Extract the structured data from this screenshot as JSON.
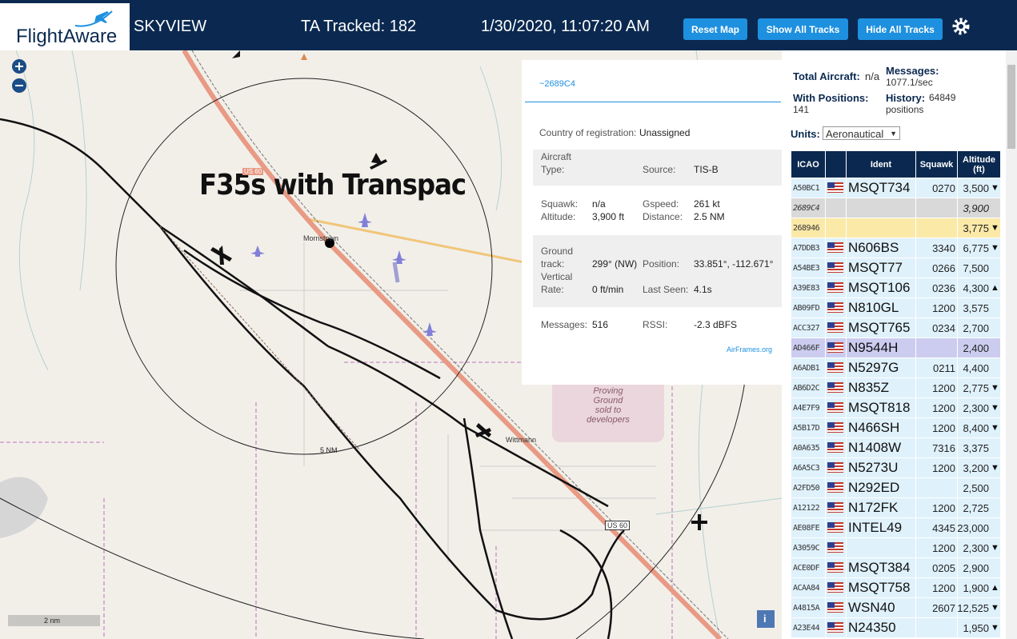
{
  "header": {
    "logo": "FlightAware",
    "app": "SKYVIEW",
    "tracked": "TA Tracked: 182",
    "datetime": "1/30/2020, 11:07:20 AM",
    "buttons": [
      "Reset Map",
      "Show All Tracks",
      "Hide All Tracks"
    ]
  },
  "map": {
    "annotation": "F35s with Transpac",
    "roads": [
      "US 60",
      "US 60"
    ],
    "places": [
      "Morristown",
      "Wittmann"
    ],
    "area": [
      "Proving",
      "Ground",
      "sold to",
      "developers"
    ],
    "ring": "5 NM",
    "scale": "2 nm",
    "info": "i"
  },
  "popup": {
    "id": "~2689C4",
    "country_label": "Country of registration:",
    "country": "Unassigned",
    "type_label": [
      "Aircraft",
      "Type:"
    ],
    "source_label": "Source:",
    "source": "TIS-B",
    "squawk_label": "Squawk:",
    "squawk": "n/a",
    "gspeed_label": "Gspeed:",
    "gspeed": "261 kt",
    "altitude_label": "Altitude:",
    "altitude": "3,900 ft",
    "distance_label": "Distance:",
    "distance": "2.5 NM",
    "track_label": [
      "Ground",
      "track:"
    ],
    "track": "299° (NW)",
    "position_label": "Position:",
    "position": "33.851°, -112.671°",
    "vrate_label": [
      "Vertical",
      "Rate:"
    ],
    "vrate": "0 ft/min",
    "seen_label": "Last Seen:",
    "seen": "4.1s",
    "messages_label": "Messages:",
    "messages": "516",
    "rssi_label": "RSSI:",
    "rssi": "-2.3 dBFS",
    "link": "AirFrames.org"
  },
  "stats": {
    "total_label": "Total Aircraft:",
    "total": "n/a",
    "messages_label": "Messages:",
    "messages": "1077.1/sec",
    "positions_label": "With Positions:",
    "positions": "141",
    "history_label": "History:",
    "history": [
      "64849",
      "positions"
    ],
    "units_label": "Units:",
    "units": "Aeronautical"
  },
  "table": {
    "columns": [
      "ICAO",
      "Ident",
      "Squawk",
      [
        "Altitude",
        "(ft)"
      ]
    ],
    "rows": [
      {
        "icao": "A50BC1",
        "flag": true,
        "ident": "MSQT734",
        "squawk": "0270",
        "altitude": "3,500",
        "trend": "▼"
      },
      {
        "icao": "2689C4",
        "flag": false,
        "ident": null,
        "squawk": null,
        "altitude": "3,900",
        "trend": null,
        "background": "#d9d9d9"
      },
      {
        "icao": "268946",
        "flag": false,
        "ident": null,
        "squawk": null,
        "altitude": "3,775",
        "trend": "▼",
        "background": "#fbe9a8"
      },
      {
        "icao": "A7DDB3",
        "flag": true,
        "ident": "N606BS",
        "squawk": "3340",
        "altitude": "6,775",
        "trend": "▼"
      },
      {
        "icao": "A54BE3",
        "flag": true,
        "ident": "MSQT77",
        "squawk": "0266",
        "altitude": "7,500",
        "trend": null
      },
      {
        "icao": "A39E83",
        "flag": true,
        "ident": "MSQT106",
        "squawk": "0236",
        "altitude": "4,300",
        "trend": "▲"
      },
      {
        "icao": "AB09FD",
        "flag": true,
        "ident": "N810GL",
        "squawk": "1200",
        "altitude": "3,575",
        "trend": null
      },
      {
        "icao": "ACC327",
        "flag": true,
        "ident": "MSQT765",
        "squawk": "0234",
        "altitude": "2,700",
        "trend": null
      },
      {
        "icao": "AD466F",
        "flag": true,
        "ident": "N9544H",
        "squawk": null,
        "altitude": "2,400",
        "trend": null,
        "background": "#ccccf0"
      },
      {
        "icao": "A6ADB1",
        "flag": true,
        "ident": "N5297G",
        "squawk": "0211",
        "altitude": "4,400",
        "trend": null
      },
      {
        "icao": "AB6D2C",
        "flag": true,
        "ident": "N835Z",
        "squawk": "1200",
        "altitude": "2,775",
        "trend": "▼"
      },
      {
        "icao": "A4E7F9",
        "flag": true,
        "ident": "MSQT818",
        "squawk": "1200",
        "altitude": "2,300",
        "trend": "▼"
      },
      {
        "icao": "A5B17D",
        "flag": true,
        "ident": "N466SH",
        "squawk": "1200",
        "altitude": "8,400",
        "trend": "▼"
      },
      {
        "icao": "A0A635",
        "flag": true,
        "ident": "N1408W",
        "squawk": "7316",
        "altitude": "3,375",
        "trend": null
      },
      {
        "icao": "A6A5C3",
        "flag": true,
        "ident": "N5273U",
        "squawk": "1200",
        "altitude": "3,200",
        "trend": "▼"
      },
      {
        "icao": "A2FD50",
        "flag": true,
        "ident": "N292ED",
        "squawk": null,
        "altitude": "2,500",
        "trend": null
      },
      {
        "icao": "A12122",
        "flag": true,
        "ident": "N172FK",
        "squawk": "1200",
        "altitude": "2,725",
        "trend": null
      },
      {
        "icao": "AE08FE",
        "flag": true,
        "ident": "INTEL49",
        "squawk": "4345",
        "altitude": "23,000",
        "trend": null
      },
      {
        "icao": "A3059C",
        "flag": true,
        "ident": null,
        "squawk": "1200",
        "altitude": "2,300",
        "trend": "▼"
      },
      {
        "icao": "ACE0DF",
        "flag": true,
        "ident": "MSQT384",
        "squawk": "0205",
        "altitude": "2,900",
        "trend": null
      },
      {
        "icao": "ACAA84",
        "flag": true,
        "ident": "MSQT758",
        "squawk": "1200",
        "altitude": "1,900",
        "trend": "▲"
      },
      {
        "icao": "A4815A",
        "flag": true,
        "ident": "WSN40",
        "squawk": "2607",
        "altitude": "12,525",
        "trend": "▼"
      },
      {
        "icao": "A23E44",
        "flag": true,
        "ident": "N24350",
        "squawk": null,
        "altitude": "1,950",
        "trend": "▼"
      }
    ]
  }
}
